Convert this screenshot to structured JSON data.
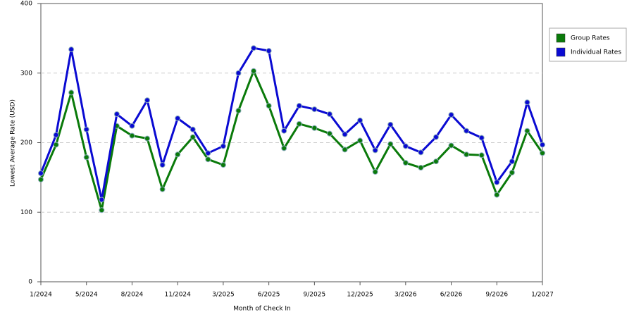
{
  "chart_data": {
    "type": "line",
    "x_label": "Month of Check In",
    "y_label": "Lowest Average Rate (USD)",
    "categories": [
      "1/2024",
      null,
      null,
      "5/2024",
      null,
      null,
      "8/2024",
      null,
      null,
      "11/2024",
      null,
      null,
      "3/2025",
      null,
      null,
      "6/2025",
      null,
      null,
      "9/2025",
      null,
      null,
      "12/2025",
      null,
      null,
      "3/2026",
      null,
      null,
      "6/2026",
      null,
      null,
      "9/2026",
      null,
      null,
      "1/2027"
    ],
    "series": [
      {
        "name": "Group Rates",
        "color": "#0a7a0a",
        "values": [
          147,
          197,
          272,
          179,
          103,
          224,
          210,
          206,
          133,
          183,
          208,
          176,
          168,
          246,
          303,
          253,
          192,
          227,
          221,
          213,
          190,
          203,
          158,
          198,
          171,
          164,
          173,
          196,
          183,
          182,
          125,
          157,
          217,
          185
        ]
      },
      {
        "name": "Individual Rates",
        "color": "#0a0ad2",
        "values": [
          156,
          211,
          334,
          219,
          118,
          241,
          224,
          261,
          168,
          235,
          219,
          185,
          195,
          300,
          336,
          332,
          217,
          253,
          248,
          241,
          212,
          232,
          189,
          226,
          195,
          186,
          208,
          240,
          217,
          207,
          143,
          173,
          258,
          197
        ]
      }
    ],
    "ylim": [
      0,
      400
    ],
    "yticks": [
      0,
      100,
      200,
      300,
      400
    ],
    "grid": true,
    "legend": "right"
  }
}
